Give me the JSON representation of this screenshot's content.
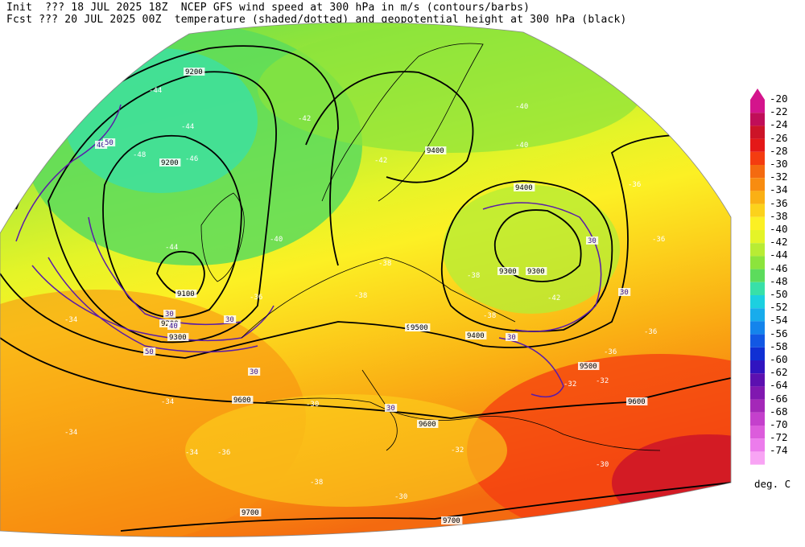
{
  "header": {
    "line1": "Init  ??? 18 JUL 2025 18Z  NCEP GFS wind speed at 300 hPa in m/s (contours/barbs)",
    "line2": "Fcst ??? 20 JUL 2025 00Z  temperature (shaded/dotted) and geopotential height at 300 hPa (black)"
  },
  "colorbar": {
    "unit": "deg. C",
    "levels": [
      {
        "label": "-20",
        "color": "#d4148c"
      },
      {
        "label": "-22",
        "color": "#c00e58"
      },
      {
        "label": "-24",
        "color": "#cc1428"
      },
      {
        "label": "-26",
        "color": "#e41818"
      },
      {
        "label": "-28",
        "color": "#f43c10"
      },
      {
        "label": "-30",
        "color": "#f46a10"
      },
      {
        "label": "-32",
        "color": "#f88c10"
      },
      {
        "label": "-34",
        "color": "#fab014"
      },
      {
        "label": "-36",
        "color": "#fcd21c"
      },
      {
        "label": "-38",
        "color": "#fcf024"
      },
      {
        "label": "-40",
        "color": "#e4f428"
      },
      {
        "label": "-42",
        "color": "#b8ec34"
      },
      {
        "label": "-44",
        "color": "#8ce43c"
      },
      {
        "label": "-46",
        "color": "#5cdc5c"
      },
      {
        "label": "-48",
        "color": "#38e0a8"
      },
      {
        "label": "-50",
        "color": "#1cd0e0"
      },
      {
        "label": "-52",
        "color": "#18acec"
      },
      {
        "label": "-54",
        "color": "#1484ec"
      },
      {
        "label": "-56",
        "color": "#1258e4"
      },
      {
        "label": "-58",
        "color": "#1030d4"
      },
      {
        "label": "-60",
        "color": "#3014c0"
      },
      {
        "label": "-62",
        "color": "#5c10b0"
      },
      {
        "label": "-64",
        "color": "#8018b0"
      },
      {
        "label": "-66",
        "color": "#a428b8"
      },
      {
        "label": "-68",
        "color": "#c440cc"
      },
      {
        "label": "-70",
        "color": "#dc5cdc"
      },
      {
        "label": "-72",
        "color": "#ec7cec"
      },
      {
        "label": "-74",
        "color": "#f8a4f4"
      }
    ]
  },
  "map": {
    "height_labels": [
      "9200",
      "9200",
      "9100",
      "9200",
      "9300",
      "9300",
      "9400",
      "9400",
      "9300",
      "9500",
      "9500",
      "9600",
      "9600",
      "9600",
      "9700",
      "9700",
      "9500",
      "9400"
    ],
    "temp_labels": [
      "-44",
      "-46",
      "-44",
      "-44",
      "-42",
      "-42",
      "-40",
      "-38",
      "-38",
      "-38",
      "-36",
      "-36",
      "-36",
      "-34",
      "-34",
      "-34",
      "-32",
      "-32",
      "-30",
      "-30",
      "-40",
      "-42",
      "-48",
      "-38",
      "-36",
      "-34",
      "-36",
      "-38",
      "-40",
      "-36",
      "-30",
      "-32"
    ],
    "wind_labels": [
      "30",
      "30",
      "40",
      "30",
      "30",
      "30",
      "30",
      "50",
      "30",
      "40",
      "50"
    ]
  }
}
